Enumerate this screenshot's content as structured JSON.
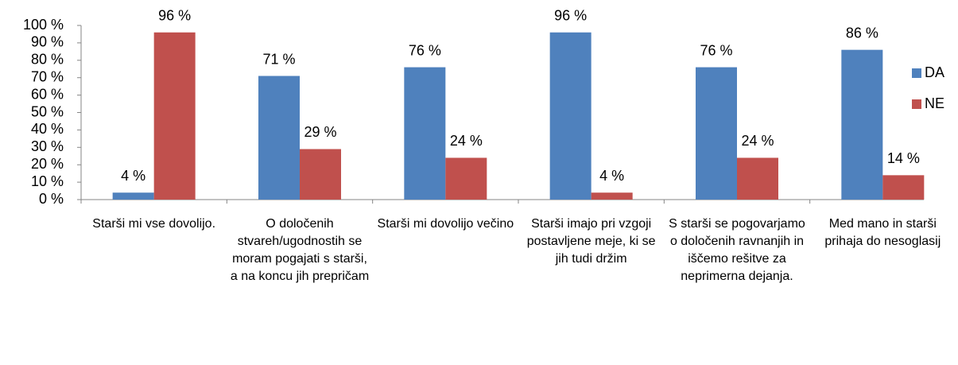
{
  "chart_data": {
    "type": "bar",
    "categories": [
      "Starši mi vse dovolijo.",
      "O določenih stvareh/ugodnostih se moram pogajati s starši, a na koncu jih prepričam",
      "Starši mi dovolijo večino",
      "Starši imajo pri vzgoji postavljene meje, ki se jih tudi držim",
      "S starši se pogovarjamo o določenih ravnanjih in iščemo rešitve za neprimerna dejanja.",
      "Med mano in starši prihaja do nesoglasij"
    ],
    "series": [
      {
        "name": "DA",
        "color": "#4f81bd",
        "values": [
          4,
          71,
          76,
          96,
          76,
          86
        ],
        "value_labels": [
          "4 %",
          "71 %",
          "76 %",
          "96 %",
          "76 %",
          "86 %"
        ]
      },
      {
        "name": "NE",
        "color": "#c0504d",
        "values": [
          96,
          29,
          24,
          4,
          24,
          14
        ],
        "value_labels": [
          "96 %",
          "29 %",
          "24 %",
          "4 %",
          "24 %",
          "14 %"
        ]
      }
    ],
    "ylim": [
      0,
      100
    ],
    "yticks": [
      {
        "value": 0,
        "label": "0 %"
      },
      {
        "value": 10,
        "label": "10 %"
      },
      {
        "value": 20,
        "label": "20 %"
      },
      {
        "value": 30,
        "label": "30 %"
      },
      {
        "value": 40,
        "label": "40 %"
      },
      {
        "value": 50,
        "label": "50 %"
      },
      {
        "value": 60,
        "label": "60 %"
      },
      {
        "value": 70,
        "label": "70 %"
      },
      {
        "value": 80,
        "label": "80 %"
      },
      {
        "value": 90,
        "label": "90 %"
      },
      {
        "value": 100,
        "label": "100 %"
      }
    ],
    "legend": "right"
  }
}
